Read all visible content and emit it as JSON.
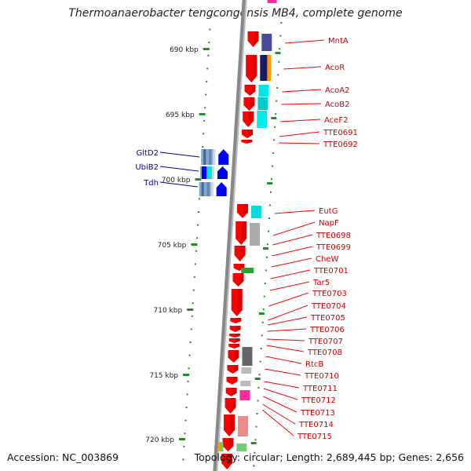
{
  "title": "Thermoanaerobacter tengcongensis MB4, complete genome",
  "scale_labels": [
    "690 kbp",
    "695 kbp",
    "700 kbp",
    "705 kbp",
    "710 kbp",
    "715 kbp",
    "720 kbp"
  ],
  "left_genes": [
    "GltD2",
    "UbiB2",
    "Tdh"
  ],
  "right_genes": [
    "MntA",
    "AcoR",
    "AcoA2",
    "AcoB2",
    "AceF2",
    "TTE0691",
    "TTE0692",
    "EutG",
    "NapF",
    "TTE0698",
    "TTE0699",
    "CheW",
    "TTE0701",
    "Tar5",
    "TTE0703",
    "TTE0704",
    "TTE0705",
    "TTE0706",
    "TTE0707",
    "TTE0708",
    "RtcB",
    "TTE0710",
    "TTE0711",
    "TTE0712",
    "TTE0713",
    "TTE0714",
    "TTE0715"
  ],
  "colors": {
    "gene_red": "#ff0000",
    "right_label": "#cc0000",
    "left_label": "#000099",
    "left_gene_blue": "#0000ff",
    "scale_green": "#2a8a2a",
    "backbone_gray": "#888888"
  },
  "footer": {
    "accession": "Accession: NC_003869",
    "topology": "Topology: circular; Length: 2,689,445 bp; Genes: 2,656"
  }
}
